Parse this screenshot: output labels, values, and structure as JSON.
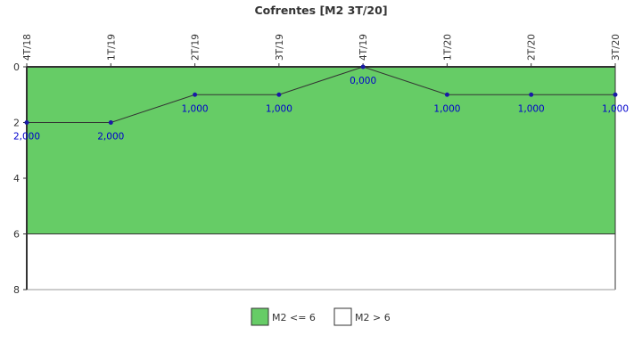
{
  "chart_data": {
    "type": "line",
    "title": "Cofrentes [M2 3T/20]",
    "categories": [
      "4T/18",
      "1T/19",
      "2T/19",
      "3T/19",
      "4T/19",
      "1T/20",
      "2T/20",
      "3T/20"
    ],
    "series": [
      {
        "values": [
          2,
          2,
          1,
          1,
          0,
          1,
          1,
          1
        ]
      }
    ],
    "data_labels": [
      "2,000",
      "2,000",
      "1,000",
      "1,000",
      "0,000",
      "1,000",
      "1,000",
      "1,000"
    ],
    "y_ticks": [
      "0",
      "2",
      "4",
      "6",
      "8"
    ],
    "ylim": [
      0,
      8
    ],
    "y_inverted": true,
    "threshold": 6,
    "bands": [
      {
        "label": "M2 <= 6",
        "from": 0,
        "to": 6,
        "color": "#66cc66"
      },
      {
        "label": "M2 > 6",
        "from": 6,
        "to": 8,
        "color": "#ffffff"
      }
    ],
    "line_color": "#333333",
    "marker_color": "#1a1aa6",
    "label_color": "#0000cc",
    "legend_position": "bottom"
  }
}
